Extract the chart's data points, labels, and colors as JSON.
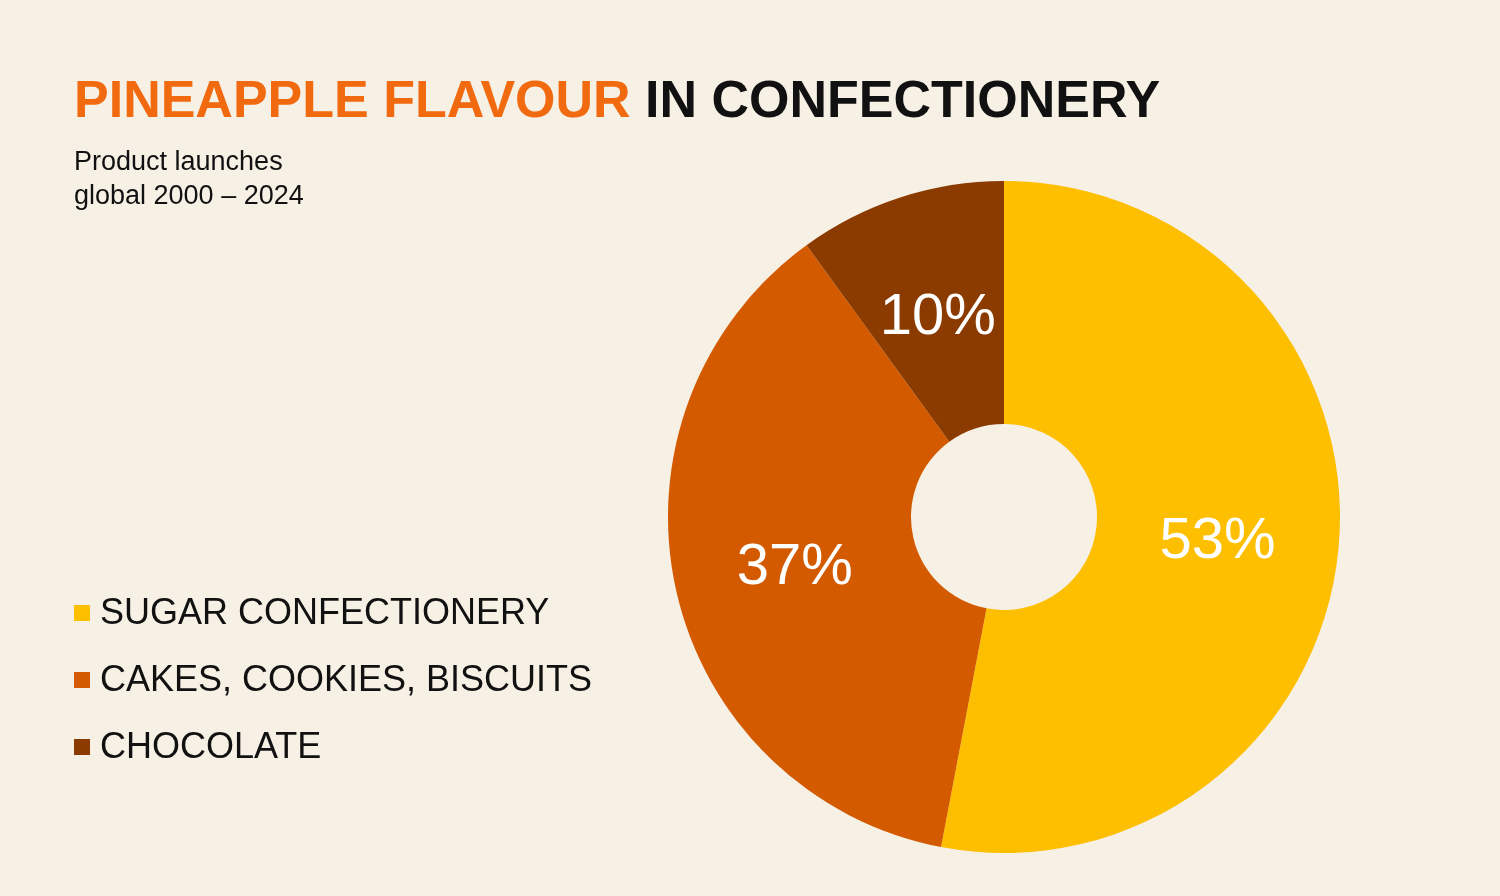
{
  "chart_data": {
    "type": "donut",
    "title": "PINEAPPLE FLAVOUR IN CONFECTIONERY",
    "subtitle": "Product launches\nglobal 2000 – 2024",
    "categories": [
      "SUGAR CONFECTIONERY",
      "CAKES, COOKIES, BISCUITS",
      "CHOCOLATE"
    ],
    "values": [
      53,
      37,
      10
    ],
    "colors": [
      "#fdbf00",
      "#d45a00",
      "#8b3a00"
    ],
    "value_labels": [
      "53%",
      "37%",
      "10%"
    ],
    "legend": "left"
  }
}
